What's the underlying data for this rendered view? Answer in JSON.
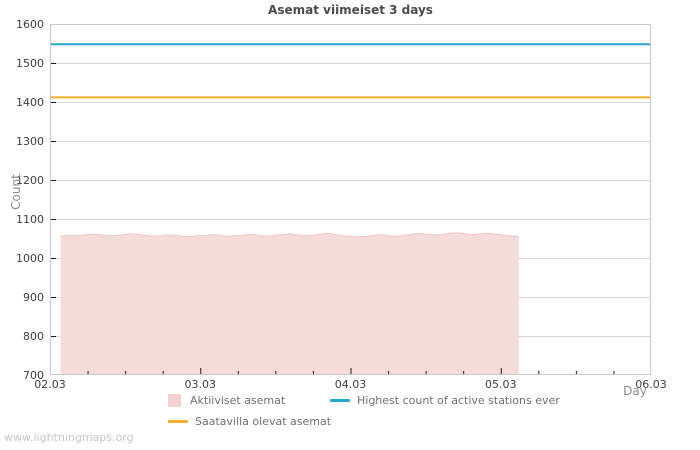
{
  "title": "Asemat viimeiset 3 days",
  "watermark": "www.lightningmaps.org",
  "axes": {
    "y_label": "Count",
    "x_label": "Day"
  },
  "legend": {
    "items": [
      {
        "id": "active",
        "label": "Aktiiviset asemat",
        "swatch": "square",
        "color": "#f3d2d2"
      },
      {
        "id": "available",
        "label": "Saatavilla olevat asemat",
        "swatch": "line",
        "color": "#f2ae2c"
      },
      {
        "id": "highest",
        "label": "Highest count of active stations ever",
        "swatch": "line",
        "color": "#25a8cc"
      }
    ]
  },
  "colors": {
    "grid_line": "#d6d6d6",
    "plot_border": "#c9c9c9",
    "tick_mark": "#1a1a1a",
    "area_fill": "#f6dbdb",
    "area_edge": "#eec5c5",
    "available_line": "#f2ae2c",
    "highest_line": "#25a8cc"
  },
  "chart_data": {
    "type": "area",
    "title": "Asemat viimeiset 3 days",
    "xlabel": "Day",
    "ylabel": "Count",
    "ylim": [
      700,
      1600
    ],
    "y_tick_step": 100,
    "x_tick_labels": [
      "02.03",
      "03.03",
      "04.03",
      "05.03",
      "06.03"
    ],
    "x_tick_days": [
      0,
      1,
      2,
      3,
      4
    ],
    "x_minor_tick_step_days": 0.25,
    "grid": "horizontal",
    "legend_position": "bottom",
    "series": [
      {
        "name": "Aktiiviset asemat",
        "type": "area",
        "fill_color": "#f6dbdb",
        "edge_color": "#eec5c5",
        "x_start_day": 0.07,
        "x_end_day": 3.12,
        "values": [
          1056,
          1058,
          1057,
          1059,
          1061,
          1060,
          1058,
          1057,
          1059,
          1062,
          1061,
          1058,
          1056,
          1057,
          1059,
          1058,
          1056,
          1055,
          1057,
          1058,
          1060,
          1058,
          1056,
          1057,
          1059,
          1061,
          1058,
          1056,
          1058,
          1060,
          1062,
          1059,
          1057,
          1058,
          1061,
          1063,
          1060,
          1057,
          1055,
          1054,
          1056,
          1058,
          1060,
          1057,
          1056,
          1058,
          1061,
          1063,
          1061,
          1059,
          1061,
          1063,
          1064,
          1062,
          1060,
          1062,
          1063,
          1061,
          1059,
          1057,
          1055
        ]
      },
      {
        "name": "Saatavilla olevat asemat",
        "type": "hline",
        "color": "#f2ae2c",
        "value": 1412,
        "x_span_days": [
          0,
          4
        ]
      },
      {
        "name": "Highest count of active stations ever",
        "type": "hline",
        "color": "#25a8cc",
        "value": 1548,
        "x_span_days": [
          0,
          4
        ]
      }
    ]
  }
}
